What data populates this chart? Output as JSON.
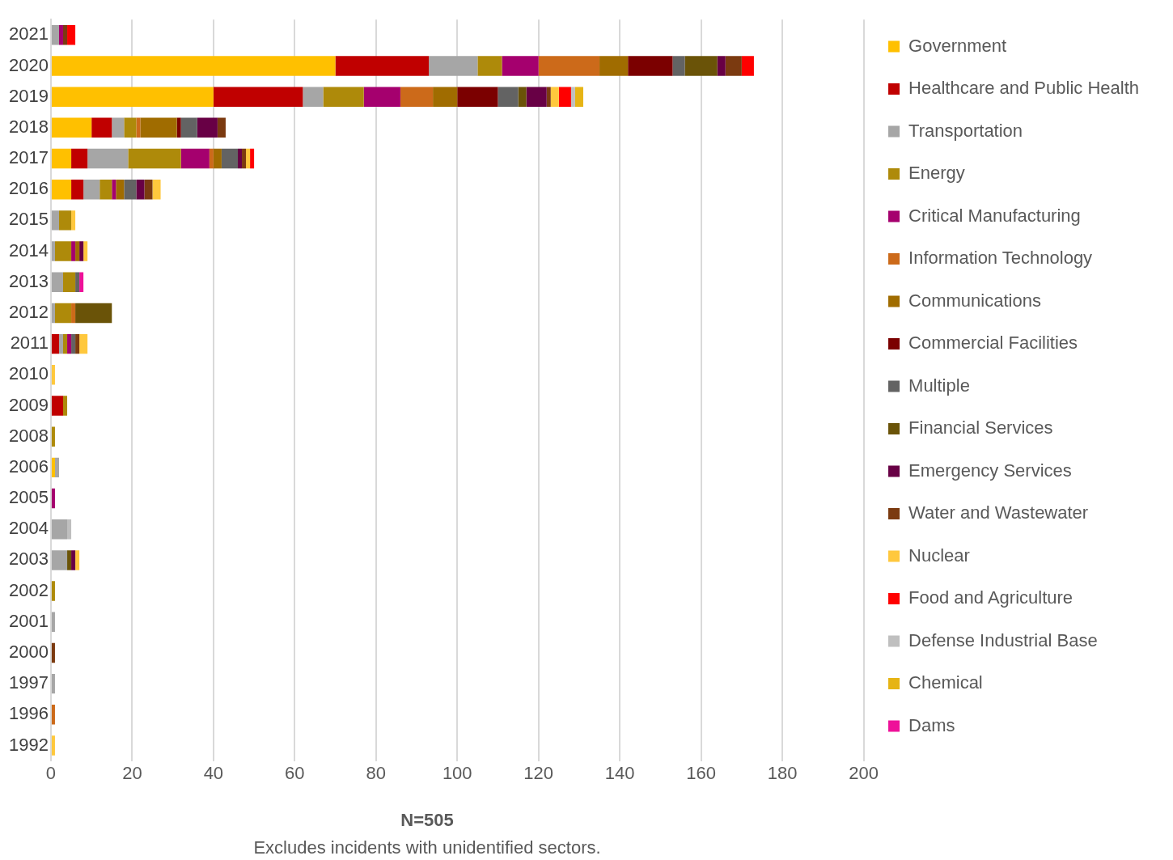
{
  "chart_data": {
    "type": "bar",
    "orientation": "horizontal",
    "stacked": true,
    "title": "N=505",
    "annotations": [
      "Excludes incidents with unidentified sectors."
    ],
    "categories": [
      "2021",
      "2020",
      "2019",
      "2018",
      "2017",
      "2016",
      "2015",
      "2014",
      "2013",
      "2012",
      "2011",
      "2010",
      "2009",
      "2008",
      "2006",
      "2005",
      "2004",
      "2003",
      "2002",
      "2001",
      "2000",
      "1997",
      "1996",
      "1992"
    ],
    "xlim": [
      0,
      200
    ],
    "xticks": [
      0,
      20,
      40,
      60,
      80,
      100,
      120,
      140,
      160,
      180,
      200
    ],
    "grid": "x",
    "legend": "right",
    "series": [
      {
        "name": "Government",
        "color": "#ffc000",
        "values": [
          null,
          70,
          40,
          10,
          5,
          5,
          null,
          null,
          null,
          null,
          null,
          null,
          null,
          null,
          1,
          null,
          null,
          null,
          null,
          null,
          null,
          null,
          null,
          null
        ]
      },
      {
        "name": "Healthcare and Public Health",
        "color": "#c00000",
        "values": [
          null,
          23,
          22,
          5,
          4,
          3,
          null,
          null,
          null,
          null,
          2,
          null,
          3,
          null,
          null,
          null,
          null,
          null,
          null,
          null,
          null,
          null,
          null,
          null
        ]
      },
      {
        "name": "Transportation",
        "color": "#a6a6a6",
        "values": [
          2,
          12,
          5,
          3,
          10,
          4,
          2,
          1,
          3,
          1,
          1,
          null,
          null,
          null,
          1,
          null,
          4,
          4,
          null,
          1,
          null,
          1,
          null,
          null
        ]
      },
      {
        "name": "Energy",
        "color": "#ae8a0a",
        "values": [
          null,
          6,
          10,
          3,
          13,
          3,
          3,
          4,
          3,
          4,
          1,
          null,
          1,
          1,
          null,
          null,
          null,
          null,
          1,
          null,
          null,
          null,
          null,
          null
        ]
      },
      {
        "name": "Critical Manufacturing",
        "color": "#a5006e",
        "values": [
          1,
          9,
          9,
          null,
          7,
          1,
          null,
          1,
          null,
          null,
          1,
          null,
          null,
          null,
          null,
          1,
          null,
          null,
          null,
          null,
          null,
          null,
          null,
          null
        ]
      },
      {
        "name": "Information Technology",
        "color": "#cc6a1a",
        "values": [
          null,
          15,
          8,
          1,
          1,
          null,
          null,
          null,
          null,
          1,
          null,
          null,
          null,
          null,
          null,
          null,
          null,
          null,
          null,
          null,
          null,
          null,
          1,
          null
        ]
      },
      {
        "name": "Communications",
        "color": "#a06c00",
        "values": [
          null,
          7,
          6,
          9,
          2,
          2,
          null,
          1,
          null,
          null,
          null,
          null,
          null,
          null,
          null,
          null,
          null,
          null,
          null,
          null,
          null,
          null,
          null,
          null
        ]
      },
      {
        "name": "Commercial Facilities",
        "color": "#7b0000",
        "values": [
          null,
          11,
          10,
          1,
          null,
          null,
          null,
          null,
          null,
          null,
          null,
          null,
          null,
          null,
          null,
          null,
          null,
          null,
          null,
          null,
          null,
          null,
          null,
          null
        ]
      },
      {
        "name": "Multiple",
        "color": "#636363",
        "values": [
          null,
          3,
          5,
          4,
          4,
          3,
          null,
          null,
          1,
          null,
          1,
          null,
          null,
          null,
          null,
          null,
          null,
          null,
          null,
          null,
          null,
          null,
          null,
          null
        ]
      },
      {
        "name": "Financial Services",
        "color": "#6a5308",
        "values": [
          null,
          8,
          2,
          null,
          null,
          null,
          null,
          null,
          null,
          9,
          null,
          null,
          null,
          null,
          null,
          null,
          null,
          1,
          null,
          null,
          null,
          null,
          null,
          null
        ]
      },
      {
        "name": "Emergency Services",
        "color": "#680045",
        "values": [
          null,
          2,
          5,
          5,
          1,
          2,
          null,
          1,
          null,
          null,
          null,
          null,
          null,
          null,
          null,
          null,
          null,
          1,
          null,
          null,
          null,
          null,
          null,
          null
        ]
      },
      {
        "name": "Water and Wastewater",
        "color": "#7b3a10",
        "values": [
          1,
          4,
          1,
          2,
          1,
          2,
          null,
          null,
          null,
          null,
          1,
          null,
          null,
          null,
          null,
          null,
          null,
          null,
          null,
          null,
          1,
          null,
          null,
          null
        ]
      },
      {
        "name": "Nuclear",
        "color": "#ffc83d",
        "values": [
          null,
          null,
          2,
          null,
          1,
          2,
          1,
          1,
          null,
          null,
          2,
          1,
          null,
          null,
          null,
          null,
          null,
          1,
          null,
          null,
          null,
          null,
          null,
          1
        ]
      },
      {
        "name": "Food and Agriculture",
        "color": "#ff0000",
        "values": [
          2,
          3,
          3,
          null,
          1,
          null,
          null,
          null,
          null,
          null,
          null,
          null,
          null,
          null,
          null,
          null,
          null,
          null,
          null,
          null,
          null,
          null,
          null,
          null
        ]
      },
      {
        "name": "Defense Industrial Base",
        "color": "#bfbfbf",
        "values": [
          null,
          null,
          1,
          null,
          null,
          null,
          null,
          null,
          null,
          null,
          null,
          null,
          null,
          null,
          null,
          null,
          1,
          null,
          null,
          null,
          null,
          null,
          null,
          null
        ]
      },
      {
        "name": "Chemical",
        "color": "#e6b414",
        "values": [
          null,
          null,
          2,
          null,
          null,
          null,
          null,
          null,
          null,
          null,
          null,
          null,
          null,
          null,
          null,
          null,
          null,
          null,
          null,
          null,
          null,
          null,
          null,
          null
        ]
      },
      {
        "name": "Dams",
        "color": "#ee1199",
        "values": [
          null,
          null,
          null,
          null,
          null,
          null,
          null,
          null,
          1,
          null,
          null,
          null,
          null,
          null,
          null,
          null,
          null,
          null,
          null,
          null,
          null,
          null,
          null,
          null
        ]
      }
    ]
  }
}
